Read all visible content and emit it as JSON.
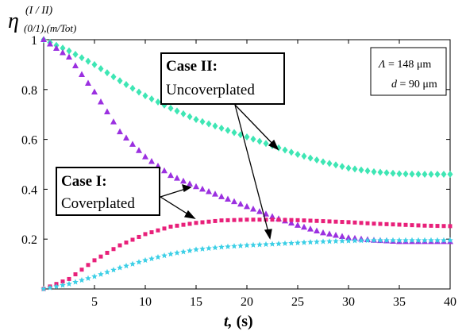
{
  "chart_data": {
    "type": "scatter",
    "title": "",
    "xlabel_var": "t,",
    "xlabel_unit": " (s)",
    "ylabel_main": "η",
    "ylabel_sup": "(I / II)",
    "ylabel_sub": "(0/1),(m/Tot)",
    "xlim": [
      0,
      40
    ],
    "ylim": [
      0,
      1
    ],
    "xticks": [
      "5",
      "10",
      "15",
      "20",
      "25",
      "30",
      "35",
      "40"
    ],
    "yticks": [
      "0.2",
      "0.4",
      "0.6",
      "0.8",
      "1"
    ],
    "series": [
      {
        "color": "#3ee6b4",
        "marker": "diamond",
        "x": [
          0,
          2.5,
          5,
          7.5,
          10,
          12.5,
          15,
          17.5,
          20,
          22.5,
          25,
          27.5,
          30,
          32.5,
          35,
          37.5,
          40
        ],
        "y": [
          1.0,
          0.955,
          0.9,
          0.835,
          0.775,
          0.725,
          0.68,
          0.645,
          0.61,
          0.575,
          0.54,
          0.51,
          0.485,
          0.47,
          0.462,
          0.46,
          0.46
        ]
      },
      {
        "color": "#9b30e0",
        "marker": "triangle",
        "x": [
          0,
          2.5,
          5,
          7.5,
          10,
          12.5,
          15,
          17.5,
          20,
          22.5,
          25,
          27.5,
          30,
          32.5,
          35,
          37.5,
          40
        ],
        "y": [
          1.0,
          0.93,
          0.79,
          0.63,
          0.53,
          0.455,
          0.41,
          0.37,
          0.33,
          0.29,
          0.255,
          0.225,
          0.205,
          0.195,
          0.19,
          0.19,
          0.19
        ]
      },
      {
        "color": "#e8207a",
        "marker": "square",
        "x": [
          0,
          2.5,
          5,
          7.5,
          10,
          12.5,
          15,
          17.5,
          20,
          22.5,
          25,
          27.5,
          30,
          32.5,
          35,
          37.5,
          40
        ],
        "y": [
          0.0,
          0.04,
          0.115,
          0.175,
          0.22,
          0.25,
          0.265,
          0.275,
          0.278,
          0.278,
          0.276,
          0.272,
          0.268,
          0.262,
          0.258,
          0.254,
          0.252
        ]
      },
      {
        "color": "#3ccfe6",
        "marker": "star",
        "x": [
          0,
          2.5,
          5,
          7.5,
          10,
          12.5,
          15,
          17.5,
          20,
          22.5,
          25,
          27.5,
          30,
          32.5,
          35,
          37.5,
          40
        ],
        "y": [
          0.0,
          0.02,
          0.05,
          0.085,
          0.115,
          0.14,
          0.158,
          0.168,
          0.175,
          0.18,
          0.185,
          0.19,
          0.193,
          0.195,
          0.195,
          0.195,
          0.195
        ]
      }
    ],
    "annotations": [
      {
        "title": "Case I:",
        "text": "Coverplated"
      },
      {
        "title": "Case II:",
        "text": "Uncoverplated"
      }
    ],
    "params": {
      "line1_sym": "Λ",
      "line1_val": " = 148 μm",
      "line2_sym": "d",
      "line2_val": " = 90 μm"
    }
  }
}
